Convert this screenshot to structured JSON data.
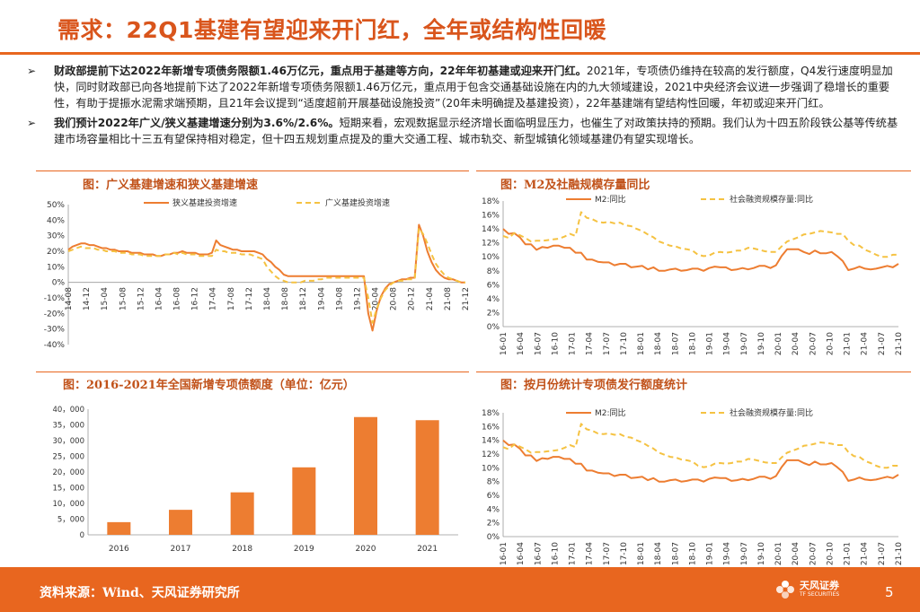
{
  "header": {
    "title": "需求：22Q1基建有望迎来开门红，全年或结构性回暖"
  },
  "bullets": [
    {
      "bold": "财政部提前下达2022年新增专项债务限额1.46万亿元，重点用于基建等方向，22年年初基建或迎来开门红。",
      "text": "2021年，专项债仍维持在较高的发行额度，Q4发行速度明显加快，同时财政部已向各地提前下达了2022年新增专项债务限额1.46万亿元，重点用于包含交通基础设施在内的九大领域建设，2021中央经济会议进一步强调了稳增长的重要性，有助于提振水泥需求端预期，且21年会议提到“适度超前开展基础设施投资”（20年未明确提及基建投资），22年基建端有望结构性回暖，年初或迎来开门红。"
    },
    {
      "bold": "我们预计2022年广义/狭义基建增速分别为3.6%/2.6%。",
      "text": "短期来看，宏观数据显示经济增长面临明显压力，也催生了对政策扶持的预期。我们认为十四五阶段铁公基等传统基建市场容量相比十三五有望保持相对稳定，但十四五规划重点提及的重大交通工程、城市轨交、新型城镇化领域基建仍有望实现增长。"
    }
  ],
  "bullet_mark": "➢",
  "captions": {
    "c1": "图：广义基建增速和狭义基建增速",
    "c2": "图：M2及社融规模存量同比",
    "c3": "图：2016-2021年全国新增专项债额度（单位：亿元）",
    "c4": "图：按月份统计专项债发行额度统计"
  },
  "footer": {
    "source": "资料来源：Wind、天风证券研究所",
    "page": "5",
    "logo_name": "天风证券",
    "logo_sub": "TF SECURITIES"
  },
  "colors": {
    "accent": "#e8661f",
    "title": "#d9551c",
    "solid_series": "#ed7d31",
    "dashed_series": "#f5c242"
  },
  "chart_data": [
    {
      "type": "line",
      "title": "图：广义基建增速和狭义基建增速",
      "x": [
        "14-02",
        "14-03",
        "14-04",
        "14-05",
        "14-06",
        "14-07",
        "14-08",
        "14-09",
        "14-10",
        "14-11",
        "14-12",
        "15-01",
        "15-02",
        "15-03",
        "15-04",
        "15-05",
        "15-06",
        "15-07",
        "15-08",
        "15-09",
        "15-10",
        "15-11",
        "15-12",
        "16-01",
        "16-02",
        "16-03",
        "16-04",
        "16-05",
        "16-06",
        "16-07",
        "16-08",
        "16-09",
        "16-10",
        "16-11",
        "16-12",
        "17-01",
        "17-02",
        "17-03",
        "17-04",
        "17-05",
        "17-06",
        "17-07",
        "17-08",
        "17-09",
        "17-10",
        "17-11",
        "17-12",
        "18-01",
        "18-02",
        "18-03",
        "18-04",
        "18-05",
        "18-06",
        "18-07",
        "18-08",
        "18-09",
        "18-10",
        "18-11",
        "18-12",
        "19-01",
        "19-02",
        "19-03",
        "19-04",
        "19-05",
        "19-06",
        "19-07",
        "19-08",
        "19-09",
        "19-10",
        "19-11",
        "19-12",
        "20-01",
        "20-02",
        "20-03",
        "20-04",
        "20-05",
        "20-06",
        "20-07",
        "20-08",
        "20-09",
        "20-10",
        "20-11",
        "20-12",
        "21-01",
        "21-02",
        "21-03",
        "21-04",
        "21-05",
        "21-06",
        "21-07",
        "21-08",
        "21-09",
        "21-10",
        "21-11",
        "21-12"
      ],
      "x_ticks": [
        "14-08",
        "14-12",
        "15-04",
        "15-08",
        "15-12",
        "16-04",
        "16-08",
        "16-12",
        "17-04",
        "17-08",
        "17-12",
        "18-04",
        "18-08",
        "18-12",
        "19-04",
        "19-08",
        "19-12",
        "20-04",
        "20-08",
        "20-12",
        "21-04",
        "21-08",
        "21-12"
      ],
      "ylim": [
        -40,
        50
      ],
      "y_ticks": [
        "50%",
        "40%",
        "30%",
        "20%",
        "10%",
        "0%",
        "-10%",
        "-20%",
        "-30%",
        "-40%"
      ],
      "legend_position": "top",
      "series": [
        {
          "name": "狭义基建投资增速",
          "style": "solid",
          "values": [
            21,
            23,
            24,
            25,
            25,
            24,
            24,
            23,
            22,
            22,
            21,
            21,
            20,
            20,
            20,
            19,
            19,
            19,
            18,
            18,
            18,
            17,
            17,
            18,
            18,
            19,
            19,
            20,
            19,
            19,
            19,
            18,
            18,
            18,
            19,
            27,
            24,
            23,
            22,
            21,
            21,
            20,
            20,
            20,
            20,
            19,
            18,
            15,
            13,
            10,
            8,
            5,
            4,
            4,
            4,
            4,
            4,
            4,
            4,
            4,
            4,
            4,
            4,
            4,
            4,
            4,
            4,
            4,
            4,
            4,
            4,
            -20,
            -31,
            -18,
            -9,
            -4,
            -1,
            0,
            1,
            2,
            2,
            3,
            3,
            37,
            30,
            20,
            13,
            8,
            5,
            3,
            2,
            2,
            1,
            0,
            0
          ]
        },
        {
          "name": "广义基建投资增速",
          "style": "dashed",
          "values": [
            20,
            21,
            22,
            23,
            22,
            22,
            22,
            21,
            21,
            20,
            20,
            20,
            19,
            19,
            19,
            18,
            18,
            18,
            17,
            17,
            17,
            17,
            17,
            18,
            18,
            19,
            18,
            19,
            18,
            18,
            18,
            17,
            17,
            17,
            17,
            21,
            20,
            20,
            19,
            19,
            19,
            18,
            18,
            18,
            17,
            16,
            15,
            10,
            7,
            4,
            2,
            1,
            0,
            0,
            0,
            0,
            1,
            1,
            1,
            2,
            2,
            3,
            3,
            3,
            3,
            3,
            3,
            3,
            3,
            3,
            3,
            -10,
            -26,
            -17,
            -10,
            -5,
            -2,
            0,
            1,
            1,
            2,
            2,
            2,
            35,
            31,
            25,
            18,
            12,
            8,
            5,
            3,
            2,
            1,
            0,
            0
          ]
        }
      ]
    },
    {
      "type": "line",
      "title": "图：M2及社融规模存量同比",
      "x_ticks": [
        "16-01",
        "16-04",
        "16-07",
        "16-10",
        "17-01",
        "17-04",
        "17-07",
        "17-10",
        "18-01",
        "18-04",
        "18-07",
        "18-10",
        "19-01",
        "19-04",
        "19-07",
        "19-10",
        "20-01",
        "20-04",
        "20-07",
        "20-10",
        "21-01",
        "21-04",
        "21-07",
        "21-10"
      ],
      "ylim": [
        0,
        18
      ],
      "y_ticks": [
        "18%",
        "16%",
        "14%",
        "12%",
        "10%",
        "8%",
        "6%",
        "4%",
        "2%",
        "0%"
      ],
      "legend_position": "top",
      "series": [
        {
          "name": "M2:同比",
          "style": "solid",
          "values": [
            14.0,
            13.3,
            13.4,
            12.8,
            11.8,
            11.8,
            11.0,
            11.4,
            11.3,
            11.6,
            11.6,
            11.3,
            11.3,
            10.6,
            10.6,
            9.6,
            9.6,
            9.3,
            9.2,
            9.2,
            8.8,
            9.0,
            9.0,
            8.5,
            8.6,
            8.7,
            8.2,
            8.5,
            8.0,
            8.0,
            8.2,
            8.3,
            8.0,
            8.1,
            8.3,
            8.3,
            8.0,
            8.4,
            8.6,
            8.5,
            8.5,
            8.1,
            8.2,
            8.4,
            8.2,
            8.4,
            8.7,
            8.7,
            8.4,
            8.8,
            10.1,
            11.1,
            11.1,
            11.1,
            10.7,
            10.4,
            10.9,
            10.5,
            10.5,
            10.7,
            10.1,
            9.4,
            8.1,
            8.3,
            8.6,
            8.3,
            8.2,
            8.3,
            8.5,
            8.7,
            8.5,
            9.0
          ]
        },
        {
          "name": "社会融资规模存量:同比",
          "style": "dashed",
          "values": [
            13.0,
            12.7,
            13.4,
            13.1,
            12.7,
            12.2,
            12.3,
            12.3,
            12.4,
            12.5,
            12.6,
            12.9,
            13.3,
            13.0,
            16.4,
            15.6,
            15.4,
            15.0,
            14.9,
            15.0,
            14.8,
            14.9,
            14.5,
            14.4,
            14.0,
            13.7,
            13.2,
            12.8,
            12.2,
            11.9,
            11.6,
            11.5,
            11.2,
            11.1,
            10.9,
            10.3,
            10.1,
            10.2,
            10.6,
            10.7,
            10.6,
            10.7,
            10.9,
            10.9,
            11.3,
            11.2,
            11.0,
            10.8,
            10.7,
            10.7,
            11.5,
            12.2,
            12.5,
            12.8,
            13.2,
            13.3,
            13.5,
            13.7,
            13.6,
            13.5,
            13.3,
            13.3,
            12.3,
            11.7,
            11.6,
            11.0,
            10.7,
            10.3,
            10.0,
            10.0,
            10.3,
            10.3
          ]
        }
      ]
    },
    {
      "type": "bar",
      "title": "图：2016-2021年全国新增专项债额度（单位：亿元）",
      "categories": [
        "2016",
        "2017",
        "2018",
        "2019",
        "2020",
        "2021"
      ],
      "values": [
        4037,
        7961,
        13527,
        21487,
        37500,
        36500
      ],
      "ylim": [
        0,
        40000
      ],
      "y_ticks": [
        "40，000",
        "35，000",
        "30，000",
        "25，000",
        "20，000",
        "15，000",
        "10，000",
        "5，000",
        "0"
      ]
    },
    {
      "type": "line",
      "title": "图：按月份统计专项债发行额度统计",
      "x_ticks": [
        "16-01",
        "16-04",
        "16-07",
        "16-10",
        "17-01",
        "17-04",
        "17-07",
        "17-10",
        "18-01",
        "18-04",
        "18-07",
        "18-10",
        "19-01",
        "19-04",
        "19-07",
        "19-10",
        "20-01",
        "20-04",
        "20-07",
        "20-10",
        "21-01",
        "21-04",
        "21-07",
        "21-10"
      ],
      "ylim": [
        0,
        18
      ],
      "y_ticks": [
        "18%",
        "16%",
        "14%",
        "12%",
        "10%",
        "8%",
        "6%",
        "4%",
        "2%",
        "0%"
      ],
      "legend_position": "top",
      "series": [
        {
          "name": "M2:同比",
          "style": "solid",
          "values": [
            14.0,
            13.3,
            13.4,
            12.8,
            11.8,
            11.8,
            11.0,
            11.4,
            11.3,
            11.6,
            11.6,
            11.3,
            11.3,
            10.6,
            10.6,
            9.6,
            9.6,
            9.3,
            9.2,
            9.2,
            8.8,
            9.0,
            9.0,
            8.5,
            8.6,
            8.7,
            8.2,
            8.5,
            8.0,
            8.0,
            8.2,
            8.3,
            8.0,
            8.1,
            8.3,
            8.3,
            8.0,
            8.4,
            8.6,
            8.5,
            8.5,
            8.1,
            8.2,
            8.4,
            8.2,
            8.4,
            8.7,
            8.7,
            8.4,
            8.8,
            10.1,
            11.1,
            11.1,
            11.1,
            10.7,
            10.4,
            10.9,
            10.5,
            10.5,
            10.7,
            10.1,
            9.4,
            8.1,
            8.3,
            8.6,
            8.3,
            8.2,
            8.3,
            8.5,
            8.7,
            8.5,
            9.0
          ]
        },
        {
          "name": "社会融资规模存量:同比",
          "style": "dashed",
          "values": [
            13.0,
            12.7,
            13.4,
            13.1,
            12.7,
            12.2,
            12.3,
            12.3,
            12.4,
            12.5,
            12.6,
            12.9,
            13.3,
            13.0,
            16.4,
            15.6,
            15.4,
            15.0,
            14.9,
            15.0,
            14.8,
            14.9,
            14.5,
            14.4,
            14.0,
            13.7,
            13.2,
            12.8,
            12.2,
            11.9,
            11.6,
            11.5,
            11.2,
            11.1,
            10.9,
            10.3,
            10.1,
            10.2,
            10.6,
            10.7,
            10.6,
            10.7,
            10.9,
            10.9,
            11.3,
            11.2,
            11.0,
            10.8,
            10.7,
            10.7,
            11.5,
            12.2,
            12.5,
            12.8,
            13.2,
            13.3,
            13.5,
            13.7,
            13.6,
            13.5,
            13.3,
            13.3,
            12.3,
            11.7,
            11.6,
            11.0,
            10.7,
            10.3,
            10.0,
            10.0,
            10.3,
            10.3
          ]
        }
      ]
    }
  ]
}
